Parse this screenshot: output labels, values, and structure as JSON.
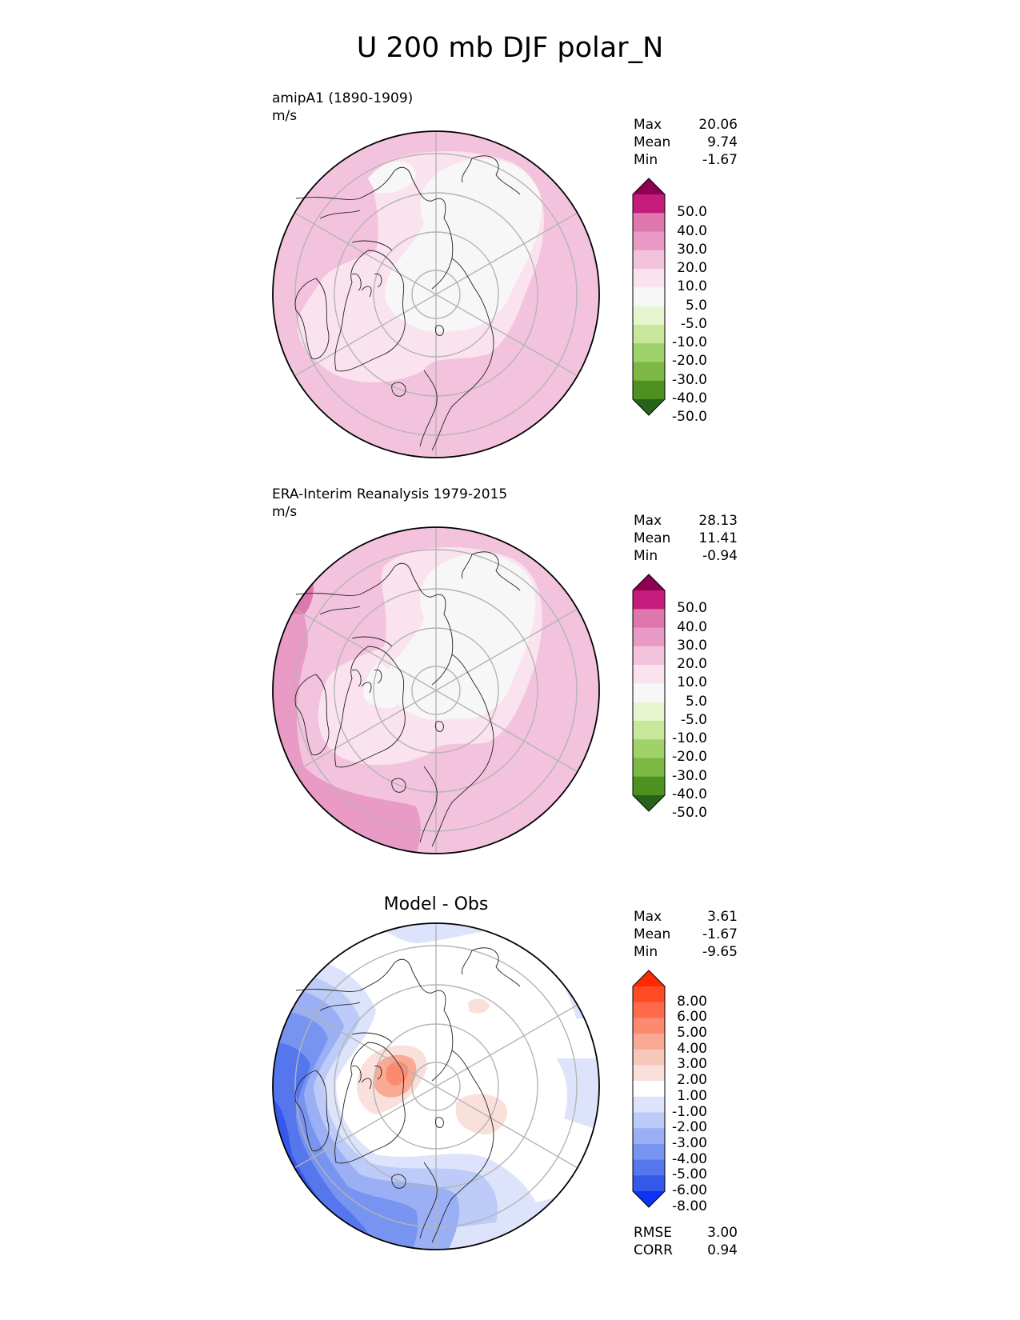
{
  "figure": {
    "title": "U 200 mb DJF polar_N"
  },
  "panels": [
    {
      "id": "model",
      "title": "amipA1 (1890-1909)",
      "units": "m/s",
      "stats": [
        {
          "label": "Max",
          "value": "20.06"
        },
        {
          "label": "Mean",
          "value": "9.74"
        },
        {
          "label": "Min",
          "value": "-1.67"
        }
      ],
      "colorbar": {
        "levels": [
          "50.0",
          "40.0",
          "30.0",
          "20.0",
          "10.0",
          "5.0",
          "-5.0",
          "-10.0",
          "-20.0",
          "-30.0",
          "-40.0",
          "-50.0"
        ],
        "colors": [
          "#8e0152",
          "#c51b7d",
          "#de77ae",
          "#e99ac5",
          "#f3c3de",
          "#fae3ef",
          "#f7f7f7",
          "#e6f5d0",
          "#c7e89b",
          "#a0d26b",
          "#7cb843",
          "#4d9221",
          "#276419"
        ]
      }
    },
    {
      "id": "obs",
      "title": "ERA-Interim Reanalysis 1979-2015",
      "units": "m/s",
      "stats": [
        {
          "label": "Max",
          "value": "28.13"
        },
        {
          "label": "Mean",
          "value": "11.41"
        },
        {
          "label": "Min",
          "value": "-0.94"
        }
      ],
      "colorbar": {
        "levels": [
          "50.0",
          "40.0",
          "30.0",
          "20.0",
          "10.0",
          "5.0",
          "-5.0",
          "-10.0",
          "-20.0",
          "-30.0",
          "-40.0",
          "-50.0"
        ],
        "colors": [
          "#8e0152",
          "#c51b7d",
          "#de77ae",
          "#e99ac5",
          "#f3c3de",
          "#fae3ef",
          "#f7f7f7",
          "#e6f5d0",
          "#c7e89b",
          "#a0d26b",
          "#7cb843",
          "#4d9221",
          "#276419"
        ]
      }
    },
    {
      "id": "diff",
      "title": "Model - Obs",
      "stats": [
        {
          "label": "Max",
          "value": "3.61"
        },
        {
          "label": "Mean",
          "value": "-1.67"
        },
        {
          "label": "Min",
          "value": "-9.65"
        }
      ],
      "colorbar": {
        "levels": [
          "8.00",
          "6.00",
          "5.00",
          "4.00",
          "3.00",
          "2.00",
          "1.00",
          "-1.00",
          "-2.00",
          "-3.00",
          "-4.00",
          "-5.00",
          "-6.00",
          "-8.00"
        ],
        "colors": [
          "#ff2a00",
          "#ff4a26",
          "#ff6b4a",
          "#fc8a6e",
          "#f9a994",
          "#f6c8ba",
          "#fae0da",
          "#ffffff",
          "#dde3fb",
          "#bccbf7",
          "#9aaff4",
          "#7894f1",
          "#5676ed",
          "#3458ea",
          "#0a33f5"
        ]
      },
      "metrics": [
        {
          "label": "RMSE",
          "value": "3.00"
        },
        {
          "label": "CORR",
          "value": "0.94"
        }
      ]
    }
  ]
}
